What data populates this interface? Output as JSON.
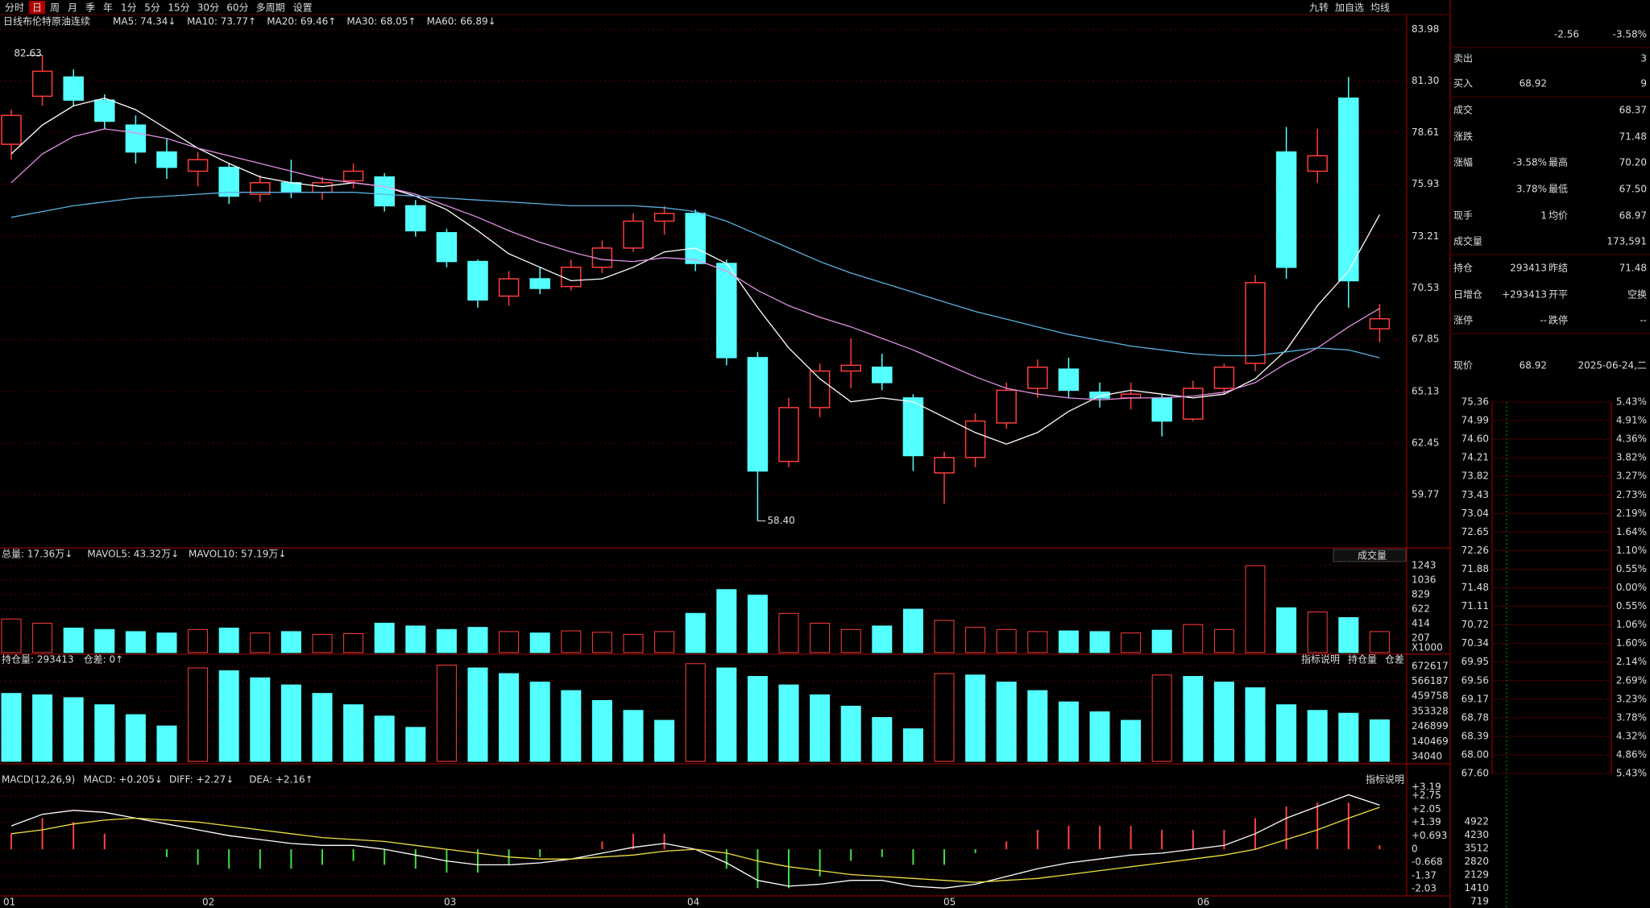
{
  "toolbar": {
    "tabs": [
      "分时",
      "日",
      "周",
      "月",
      "季",
      "年",
      "1分",
      "5分",
      "15分",
      "30分",
      "60分",
      "多周期",
      "设置"
    ],
    "active": 1,
    "right": [
      "九转",
      "加自选",
      "均线"
    ]
  },
  "kline": {
    "period": "日线",
    "name": "布伦特原油连续",
    "ma_labels": [
      {
        "text": "MA5: 74.34↓",
        "color": "#ffffff"
      },
      {
        "text": "MA10: 73.77↑",
        "color": "#f0e040"
      },
      {
        "text": "MA20: 69.46↑",
        "color": "#e090e0"
      },
      {
        "text": "MA30: 68.05↑",
        "color": "#40d040"
      },
      {
        "text": "MA60: 66.89↓",
        "color": "#5ab0e0"
      }
    ],
    "ylim": [
      57.0,
      84.25
    ],
    "yticks": [
      83.98,
      {
        "value": 81.3,
        "label": "81.30"
      },
      78.61,
      75.93,
      73.21,
      70.53,
      67.85,
      65.13,
      62.45,
      59.77
    ],
    "up_color": "#ff3c3c",
    "down_color": "#54ffff",
    "candles": [
      [
        78.0,
        79.8,
        77.2,
        79.5
      ],
      [
        80.5,
        82.63,
        80.0,
        81.8
      ],
      [
        81.5,
        81.9,
        80.0,
        80.3
      ],
      [
        80.3,
        80.6,
        78.8,
        79.2
      ],
      [
        79.0,
        79.5,
        77.0,
        77.6
      ],
      [
        77.6,
        78.3,
        76.2,
        76.8
      ],
      [
        76.6,
        77.6,
        75.8,
        77.2
      ],
      [
        76.8,
        77.0,
        74.9,
        75.3
      ],
      [
        75.4,
        76.4,
        75.0,
        76.0
      ],
      [
        76.0,
        77.2,
        75.2,
        75.5
      ],
      [
        75.5,
        76.3,
        75.1,
        76.0
      ],
      [
        76.1,
        77.0,
        75.7,
        76.6
      ],
      [
        76.3,
        76.5,
        74.5,
        74.8
      ],
      [
        74.8,
        75.1,
        73.2,
        73.5
      ],
      [
        73.4,
        73.6,
        71.6,
        71.9
      ],
      [
        71.9,
        72.0,
        69.5,
        69.9
      ],
      [
        70.1,
        71.4,
        69.6,
        71.0
      ],
      [
        71.0,
        71.6,
        70.2,
        70.5
      ],
      [
        70.6,
        72.0,
        70.4,
        71.6
      ],
      [
        71.6,
        73.0,
        71.3,
        72.6
      ],
      [
        72.6,
        74.4,
        72.4,
        74.0
      ],
      [
        74.0,
        74.8,
        73.3,
        74.4
      ],
      [
        74.4,
        74.6,
        71.4,
        71.8
      ],
      [
        71.8,
        72.0,
        66.5,
        66.9
      ],
      [
        66.9,
        67.2,
        58.4,
        61.0
      ],
      [
        61.5,
        64.8,
        61.2,
        64.3
      ],
      [
        64.3,
        66.6,
        63.8,
        66.2
      ],
      [
        66.2,
        67.9,
        65.3,
        66.5
      ],
      [
        66.4,
        67.1,
        65.2,
        65.6
      ],
      [
        64.8,
        65.0,
        61.0,
        61.8
      ],
      [
        60.9,
        62.0,
        59.3,
        61.7
      ],
      [
        61.7,
        64.0,
        61.2,
        63.6
      ],
      [
        63.5,
        65.6,
        63.2,
        65.2
      ],
      [
        65.3,
        66.8,
        64.8,
        66.4
      ],
      [
        66.3,
        66.9,
        64.8,
        65.2
      ],
      [
        65.1,
        65.6,
        64.3,
        64.8
      ],
      [
        64.8,
        65.6,
        64.2,
        65.0
      ],
      [
        64.8,
        65.0,
        62.8,
        63.6
      ],
      [
        63.7,
        65.7,
        63.6,
        65.3
      ],
      [
        65.3,
        66.6,
        65.0,
        66.4
      ],
      [
        66.6,
        71.2,
        66.2,
        70.8
      ],
      [
        77.6,
        78.9,
        71.0,
        71.6
      ],
      [
        76.6,
        78.8,
        76.0,
        77.4
      ],
      [
        80.4,
        81.5,
        69.5,
        70.9
      ],
      [
        68.4,
        69.7,
        67.7,
        68.92
      ]
    ],
    "ma_lines": [
      {
        "color": "#ffffff",
        "values": [
          77.5,
          79.0,
          80.0,
          80.4,
          79.8,
          78.8,
          77.8,
          77.0,
          76.3,
          76.0,
          75.8,
          76.0,
          75.8,
          75.3,
          74.6,
          73.5,
          72.3,
          71.6,
          70.9,
          71.0,
          71.6,
          72.4,
          72.6,
          71.8,
          69.5,
          67.4,
          65.8,
          64.6,
          64.8,
          64.6,
          63.8,
          63.0,
          62.4,
          63.0,
          64.1,
          64.9,
          65.2,
          65.0,
          64.8,
          65.0,
          65.8,
          67.3,
          69.6,
          71.4,
          74.34
        ]
      },
      {
        "color": "#e090e0",
        "values": [
          76.0,
          77.5,
          78.4,
          78.8,
          78.6,
          78.3,
          77.8,
          77.4,
          77.0,
          76.6,
          76.2,
          76.0,
          75.8,
          75.4,
          74.8,
          74.2,
          73.5,
          72.9,
          72.4,
          72.0,
          71.9,
          72.1,
          72.0,
          71.4,
          70.4,
          69.6,
          69.0,
          68.5,
          67.9,
          67.3,
          66.6,
          65.9,
          65.3,
          65.0,
          64.8,
          64.7,
          64.8,
          64.8,
          64.9,
          65.1,
          65.6,
          66.6,
          67.4,
          68.5,
          69.46
        ]
      },
      {
        "color": "#5ab0e0",
        "values": [
          74.2,
          74.5,
          74.8,
          75.0,
          75.2,
          75.3,
          75.4,
          75.5,
          75.5,
          75.5,
          75.5,
          75.5,
          75.4,
          75.3,
          75.2,
          75.1,
          75.0,
          74.9,
          74.8,
          74.8,
          74.8,
          74.7,
          74.5,
          74.0,
          73.3,
          72.6,
          71.9,
          71.3,
          70.8,
          70.3,
          69.8,
          69.3,
          68.9,
          68.5,
          68.1,
          67.8,
          67.5,
          67.3,
          67.1,
          67.0,
          67.0,
          67.2,
          67.4,
          67.3,
          66.89
        ]
      }
    ],
    "max_label": 82.63,
    "min_label": {
      "value": 58.4,
      "label": "58.40"
    }
  },
  "volume": {
    "labels": [
      {
        "text": "总量: 17.36万↓",
        "color": "#ff5050"
      },
      {
        "text": "MAVOL5: 43.32万↓",
        "color": "#f0e040"
      },
      {
        "text": "MAVOL10: 57.19万↓",
        "color": "#ffffff"
      }
    ],
    "selector": "成交量",
    "unit": "X1000",
    "ylim": [
      0,
      1380
    ],
    "yticks": [
      1243,
      1036,
      829,
      622,
      414,
      207
    ],
    "values": [
      480,
      420,
      350,
      330,
      300,
      280,
      330,
      350,
      280,
      300,
      260,
      270,
      420,
      380,
      330,
      360,
      300,
      280,
      310,
      290,
      260,
      300,
      560,
      900,
      820,
      560,
      420,
      330,
      380,
      620,
      460,
      360,
      330,
      300,
      310,
      300,
      280,
      320,
      400,
      330,
      1240,
      640,
      580,
      500,
      300
    ]
  },
  "open_interest": {
    "labels": [
      {
        "text": "持仓量: 293413",
        "color": "#ffffff"
      },
      {
        "text": "仓差: 0↑",
        "color": "#ffffff"
      }
    ],
    "buttons": [
      "指标说明",
      "持仓量",
      "仓差"
    ],
    "ylim": [
      0,
      700000
    ],
    "yticks": [
      672617,
      566187,
      459758,
      353328,
      246899,
      140469,
      34040
    ],
    "values": [
      480000,
      470000,
      450000,
      400000,
      330000,
      250000,
      660000,
      640000,
      590000,
      540000,
      480000,
      400000,
      320000,
      240000,
      680000,
      660000,
      620000,
      560000,
      500000,
      430000,
      360000,
      290000,
      690000,
      660000,
      600000,
      540000,
      470000,
      390000,
      310000,
      230000,
      620000,
      610000,
      560000,
      500000,
      420000,
      350000,
      290000,
      610000,
      600000,
      560000,
      520000,
      400000,
      360000,
      340000,
      293413
    ]
  },
  "macd": {
    "labels": [
      {
        "text": "MACD(12,26,9)",
        "color": "#ffffff"
      },
      {
        "text": "MACD: +0.205↓",
        "color": "#ff5050"
      },
      {
        "text": "DIFF: +2.27↓",
        "color": "#ffffff"
      },
      {
        "text": "DEA: +2.16↑",
        "color": "#f0e040"
      }
    ],
    "button": "指标说明",
    "ylim": [
      -2.4,
      3.9
    ],
    "yticks": [
      {
        "value": 3.19,
        "label": "+3.19"
      },
      {
        "value": 2.75,
        "label": "+2.75"
      },
      {
        "value": 2.05,
        "label": "+2.05"
      },
      {
        "value": 1.39,
        "label": "+1.39"
      },
      {
        "value": 0.693,
        "label": "+0.693"
      },
      0,
      -0.668,
      -1.37,
      -2.03
    ],
    "diff": [
      1.2,
      1.8,
      2.0,
      1.9,
      1.6,
      1.3,
      1.0,
      0.7,
      0.5,
      0.3,
      0.2,
      0.2,
      0.0,
      -0.3,
      -0.6,
      -0.8,
      -0.8,
      -0.7,
      -0.5,
      -0.2,
      0.1,
      0.3,
      0.0,
      -0.7,
      -1.6,
      -1.9,
      -1.8,
      -1.6,
      -1.6,
      -1.9,
      -2.0,
      -1.8,
      -1.4,
      -1.0,
      -0.7,
      -0.5,
      -0.3,
      -0.2,
      0.0,
      0.2,
      0.8,
      1.6,
      2.2,
      2.8,
      2.27
    ],
    "dea": [
      0.8,
      1.0,
      1.3,
      1.5,
      1.6,
      1.5,
      1.4,
      1.2,
      1.0,
      0.8,
      0.6,
      0.5,
      0.4,
      0.2,
      0.0,
      -0.2,
      -0.4,
      -0.5,
      -0.5,
      -0.4,
      -0.3,
      -0.1,
      0.0,
      -0.2,
      -0.6,
      -0.9,
      -1.1,
      -1.3,
      -1.4,
      -1.5,
      -1.6,
      -1.7,
      -1.6,
      -1.5,
      -1.3,
      -1.1,
      -0.9,
      -0.7,
      -0.5,
      -0.3,
      0.0,
      0.5,
      1.0,
      1.6,
      2.16
    ],
    "hist": [
      0.8,
      1.6,
      1.4,
      0.8,
      0,
      -0.4,
      -0.8,
      -1.0,
      -1.0,
      -1.0,
      -0.8,
      -0.6,
      -0.8,
      -1.0,
      -1.2,
      -1.2,
      -0.8,
      -0.4,
      0,
      0.4,
      0.8,
      0.8,
      0,
      -1.0,
      -2.0,
      -2.0,
      -1.4,
      -0.6,
      -0.4,
      -0.8,
      -0.8,
      -0.2,
      0.4,
      1.0,
      1.2,
      1.2,
      1.2,
      1.0,
      1.0,
      1.0,
      1.6,
      2.2,
      2.4,
      2.4,
      0.205
    ]
  },
  "months": [
    "01",
    "02",
    "03",
    "04",
    "05",
    "06"
  ],
  "quote": {
    "rows": [
      [
        {
          "text": "-2.56",
          "color": "#40e040"
        },
        {
          "text": "-3.58%",
          "color": "#40e040"
        }
      ],
      [
        {
          "text": "卖出",
          "color": "#dddddd"
        },
        {
          "text": "3",
          "color": "#6cb4ff"
        }
      ],
      [
        {
          "text": "买入",
          "color": "#dddddd"
        },
        {
          "text": "68.92",
          "color": "#40e040"
        },
        {
          "text": "9",
          "color": "#6cb4ff"
        }
      ],
      [
        {
          "text": "成交",
          "color": "#dddddd"
        },
        {
          "text": "68.37",
          "color": "#40e040"
        }
      ],
      [
        {
          "text": "涨跌",
          "color": "#dddddd"
        },
        {
          "text": "71.48",
          "color": "#ffffff"
        }
      ],
      [
        {
          "text": "涨幅",
          "color": "#dddddd"
        },
        {
          "text": "-3.58%",
          "color": "#40e040"
        },
        {
          "text": "最高",
          "color": "#dddddd"
        },
        {
          "text": "70.20",
          "color": "#40e040"
        }
      ],
      [
        {
          "text": "3.78%",
          "color": "#54ffff"
        },
        {
          "text": "最低",
          "color": "#dddddd"
        },
        {
          "text": "67.50",
          "color": "#40e040"
        }
      ],
      [
        {
          "text": "现手",
          "color": "#dddddd"
        },
        {
          "text": "1",
          "color": "#f0e040"
        },
        {
          "text": "均价",
          "color": "#dddddd"
        },
        {
          "text": "68.97",
          "color": "#40e040"
        }
      ],
      [
        {
          "text": "成交量",
          "color": "#dddddd"
        },
        {
          "text": "173,591",
          "color": "#ffffff"
        }
      ],
      [
        {
          "text": "持仓",
          "color": "#dddddd"
        },
        {
          "text": "293413",
          "color": "#54ffff"
        },
        {
          "text": "昨结",
          "color": "#dddddd"
        },
        {
          "text": "71.48",
          "color": "#ffffff"
        }
      ],
      [
        {
          "text": "日增仓",
          "color": "#dddddd"
        },
        {
          "text": "+293413",
          "color": "#54ffff"
        },
        {
          "text": "开平",
          "color": "#dddddd"
        },
        {
          "text": "空换",
          "color": "#54ffff"
        }
      ],
      [
        {
          "text": "涨停",
          "color": "#dddddd"
        },
        {
          "text": "--",
          "color": "#dddddd"
        },
        {
          "text": "跌停",
          "color": "#dddddd"
        },
        {
          "text": "--",
          "color": "#dddddd"
        }
      ],
      [
        {
          "text": "现价",
          "color": "#dddddd"
        },
        {
          "text": "68.92",
          "color": "#40e040"
        },
        {
          "text": "2025-06-24,二",
          "color": "#ffffff"
        }
      ]
    ]
  },
  "intraday": {
    "price_ticks": [
      "75.36",
      "74.99",
      "74.60",
      "74.21",
      "73.82",
      "73.43",
      "73.04",
      "72.65",
      "72.26",
      "71.88",
      "71.48",
      "71.11",
      "70.72",
      "70.34",
      "69.95",
      "69.56",
      "69.17",
      "68.78",
      "68.39",
      "68.00",
      "67.60"
    ],
    "pct_ticks": [
      "5.43%",
      "4.91%",
      "4.36%",
      "3.82%",
      "3.27%",
      "2.73%",
      "2.19%",
      "1.64%",
      "1.10%",
      "0.55%",
      "0.00%",
      "0.55%",
      "1.06%",
      "1.60%",
      "2.14%",
      "2.69%",
      "3.23%",
      "3.78%",
      "4.32%",
      "4.86%",
      "5.43%"
    ],
    "volume_ticks": [
      "4922",
      "4230",
      "3512",
      "2820",
      "2129",
      "1410",
      "719"
    ]
  }
}
